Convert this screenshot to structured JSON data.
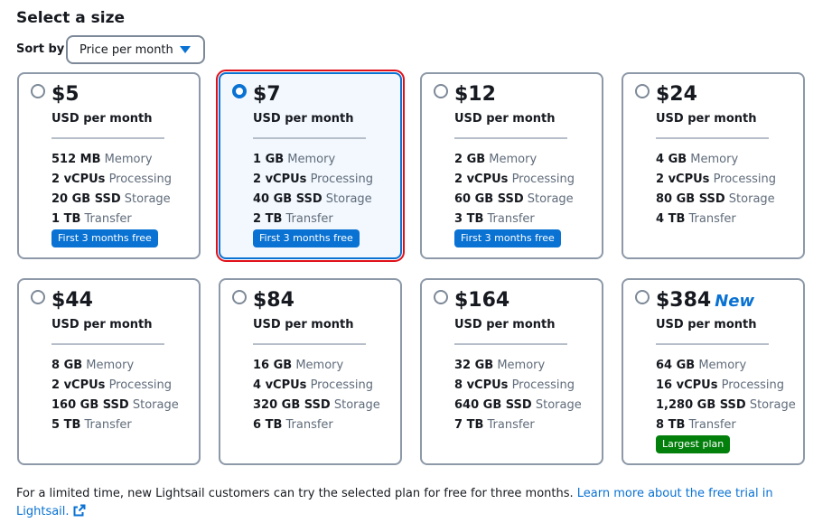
{
  "heading": "Select a size",
  "sort": {
    "label": "Sort by",
    "selected": "Price per month"
  },
  "plans": [
    {
      "price": "$5",
      "period": "USD per month",
      "memory": {
        "value": "512 MB",
        "unit": "Memory"
      },
      "processing": {
        "value": "2 vCPUs",
        "unit": "Processing"
      },
      "storage": {
        "value": "20 GB SSD",
        "unit": "Storage"
      },
      "transfer": {
        "value": "1 TB",
        "unit": "Transfer"
      },
      "badge": "First 3 months free",
      "badge_color": "#0972d3",
      "tag": "",
      "selected": false
    },
    {
      "price": "$7",
      "period": "USD per month",
      "memory": {
        "value": "1 GB",
        "unit": "Memory"
      },
      "processing": {
        "value": "2 vCPUs",
        "unit": "Processing"
      },
      "storage": {
        "value": "40 GB SSD",
        "unit": "Storage"
      },
      "transfer": {
        "value": "2 TB",
        "unit": "Transfer"
      },
      "badge": "First 3 months free",
      "badge_color": "#0972d3",
      "tag": "",
      "selected": true
    },
    {
      "price": "$12",
      "period": "USD per month",
      "memory": {
        "value": "2 GB",
        "unit": "Memory"
      },
      "processing": {
        "value": "2 vCPUs",
        "unit": "Processing"
      },
      "storage": {
        "value": "60 GB SSD",
        "unit": "Storage"
      },
      "transfer": {
        "value": "3 TB",
        "unit": "Transfer"
      },
      "badge": "First 3 months free",
      "badge_color": "#0972d3",
      "tag": "",
      "selected": false
    },
    {
      "price": "$24",
      "period": "USD per month",
      "memory": {
        "value": "4 GB",
        "unit": "Memory"
      },
      "processing": {
        "value": "2 vCPUs",
        "unit": "Processing"
      },
      "storage": {
        "value": "80 GB SSD",
        "unit": "Storage"
      },
      "transfer": {
        "value": "4 TB",
        "unit": "Transfer"
      },
      "badge": "",
      "badge_color": "",
      "tag": "",
      "selected": false
    },
    {
      "price": "$44",
      "period": "USD per month",
      "memory": {
        "value": "8 GB",
        "unit": "Memory"
      },
      "processing": {
        "value": "2 vCPUs",
        "unit": "Processing"
      },
      "storage": {
        "value": "160 GB SSD",
        "unit": "Storage"
      },
      "transfer": {
        "value": "5 TB",
        "unit": "Transfer"
      },
      "badge": "",
      "badge_color": "",
      "tag": "",
      "selected": false
    },
    {
      "price": "$84",
      "period": "USD per month",
      "memory": {
        "value": "16 GB",
        "unit": "Memory"
      },
      "processing": {
        "value": "4 vCPUs",
        "unit": "Processing"
      },
      "storage": {
        "value": "320 GB SSD",
        "unit": "Storage"
      },
      "transfer": {
        "value": "6 TB",
        "unit": "Transfer"
      },
      "badge": "",
      "badge_color": "",
      "tag": "",
      "selected": false
    },
    {
      "price": "$164",
      "period": "USD per month",
      "memory": {
        "value": "32 GB",
        "unit": "Memory"
      },
      "processing": {
        "value": "8 vCPUs",
        "unit": "Processing"
      },
      "storage": {
        "value": "640 GB SSD",
        "unit": "Storage"
      },
      "transfer": {
        "value": "7 TB",
        "unit": "Transfer"
      },
      "badge": "",
      "badge_color": "",
      "tag": "",
      "selected": false
    },
    {
      "price": "$384",
      "period": "USD per month",
      "memory": {
        "value": "64 GB",
        "unit": "Memory"
      },
      "processing": {
        "value": "16 vCPUs",
        "unit": "Processing"
      },
      "storage": {
        "value": "1,280 GB SSD",
        "unit": "Storage"
      },
      "transfer": {
        "value": "8 TB",
        "unit": "Transfer"
      },
      "badge": "Largest plan",
      "badge_color": "#037f0c",
      "tag": "New",
      "selected": false
    }
  ],
  "footer": {
    "text": "For a limited time, new Lightsail customers can try the selected plan for free for three months. ",
    "link": "Learn more about the free trial in Lightsail.",
    "link_icon": "external-link-icon"
  },
  "colors": {
    "accent": "#0972d3",
    "selected_outline": "#e0101a",
    "success": "#037f0c"
  }
}
